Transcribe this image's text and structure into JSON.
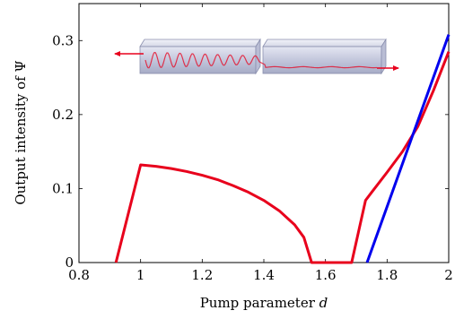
{
  "chart_data": {
    "type": "line",
    "xlabel": "Pump parameter",
    "xlabel_var": "d",
    "ylabel": "Output intensity of Ψ",
    "xlim": [
      0.8,
      2.0
    ],
    "ylim": [
      0,
      0.35
    ],
    "xticks": [
      0.8,
      1.0,
      1.2,
      1.4,
      1.6,
      1.8,
      2.0
    ],
    "xtick_labels": [
      "0.8",
      "1",
      "1.2",
      "1.4",
      "1.6",
      "1.8",
      "2"
    ],
    "yticks": [
      0,
      0.1,
      0.2,
      0.3
    ],
    "ytick_labels": [
      "0",
      "0.1",
      "0.2",
      "0.3"
    ],
    "grid": false,
    "series": [
      {
        "color": "#e8001c",
        "x": [
          0.92,
          1.0,
          1.05,
          1.1,
          1.15,
          1.2,
          1.25,
          1.3,
          1.35,
          1.4,
          1.45,
          1.5,
          1.53,
          1.555,
          1.6,
          1.65,
          1.685,
          1.73,
          1.75,
          1.8,
          1.85,
          1.9,
          1.95,
          2.0
        ],
        "y": [
          0.0,
          0.132,
          0.13,
          0.127,
          0.123,
          0.118,
          0.112,
          0.104,
          0.095,
          0.084,
          0.07,
          0.051,
          0.034,
          0.0,
          0.0,
          0.0,
          0.0,
          0.084,
          0.095,
          0.122,
          0.15,
          0.184,
          0.232,
          0.285
        ]
      },
      {
        "color": "#0000ee",
        "x": [
          1.735,
          2.0
        ],
        "y": [
          0.0,
          0.308
        ]
      }
    ]
  },
  "inset": {
    "description_icon": "two-waveguides-with-wave-icon",
    "glass_color": "#c8cce0",
    "wave_color": "#e8001c"
  }
}
